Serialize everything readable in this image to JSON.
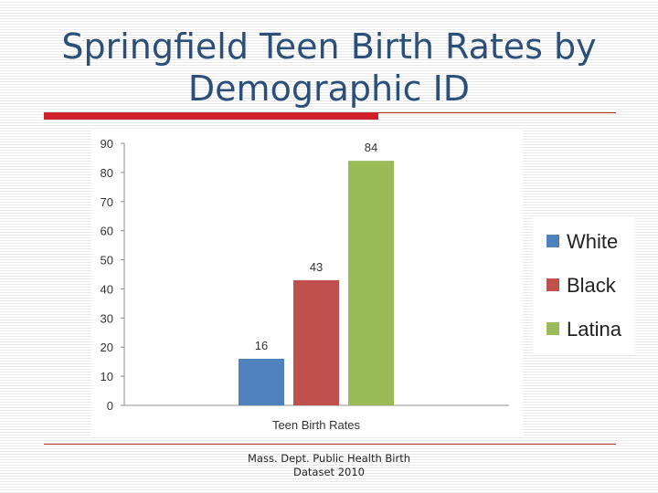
{
  "slide": {
    "title_line1": "Springfield Teen Birth Rates by",
    "title_line2": "Demographic ID",
    "source_line1": "Mass. Dept. Public Health Birth",
    "source_line2": "Dataset 2010"
  },
  "chart_data": {
    "type": "bar",
    "title": "",
    "xlabel": "Teen Birth Rates",
    "ylabel": "",
    "ylim": [
      0,
      90
    ],
    "yticks": [
      0,
      10,
      20,
      30,
      40,
      50,
      60,
      70,
      80,
      90
    ],
    "grid": false,
    "legend_position": "right",
    "categories": [
      "Teen Birth Rates"
    ],
    "series": [
      {
        "name": "White",
        "values": [
          16
        ],
        "color": "#4f81bd"
      },
      {
        "name": "Black",
        "values": [
          43
        ],
        "color": "#c0504d"
      },
      {
        "name": "Latina",
        "values": [
          84
        ],
        "color": "#9bbb59"
      }
    ]
  }
}
